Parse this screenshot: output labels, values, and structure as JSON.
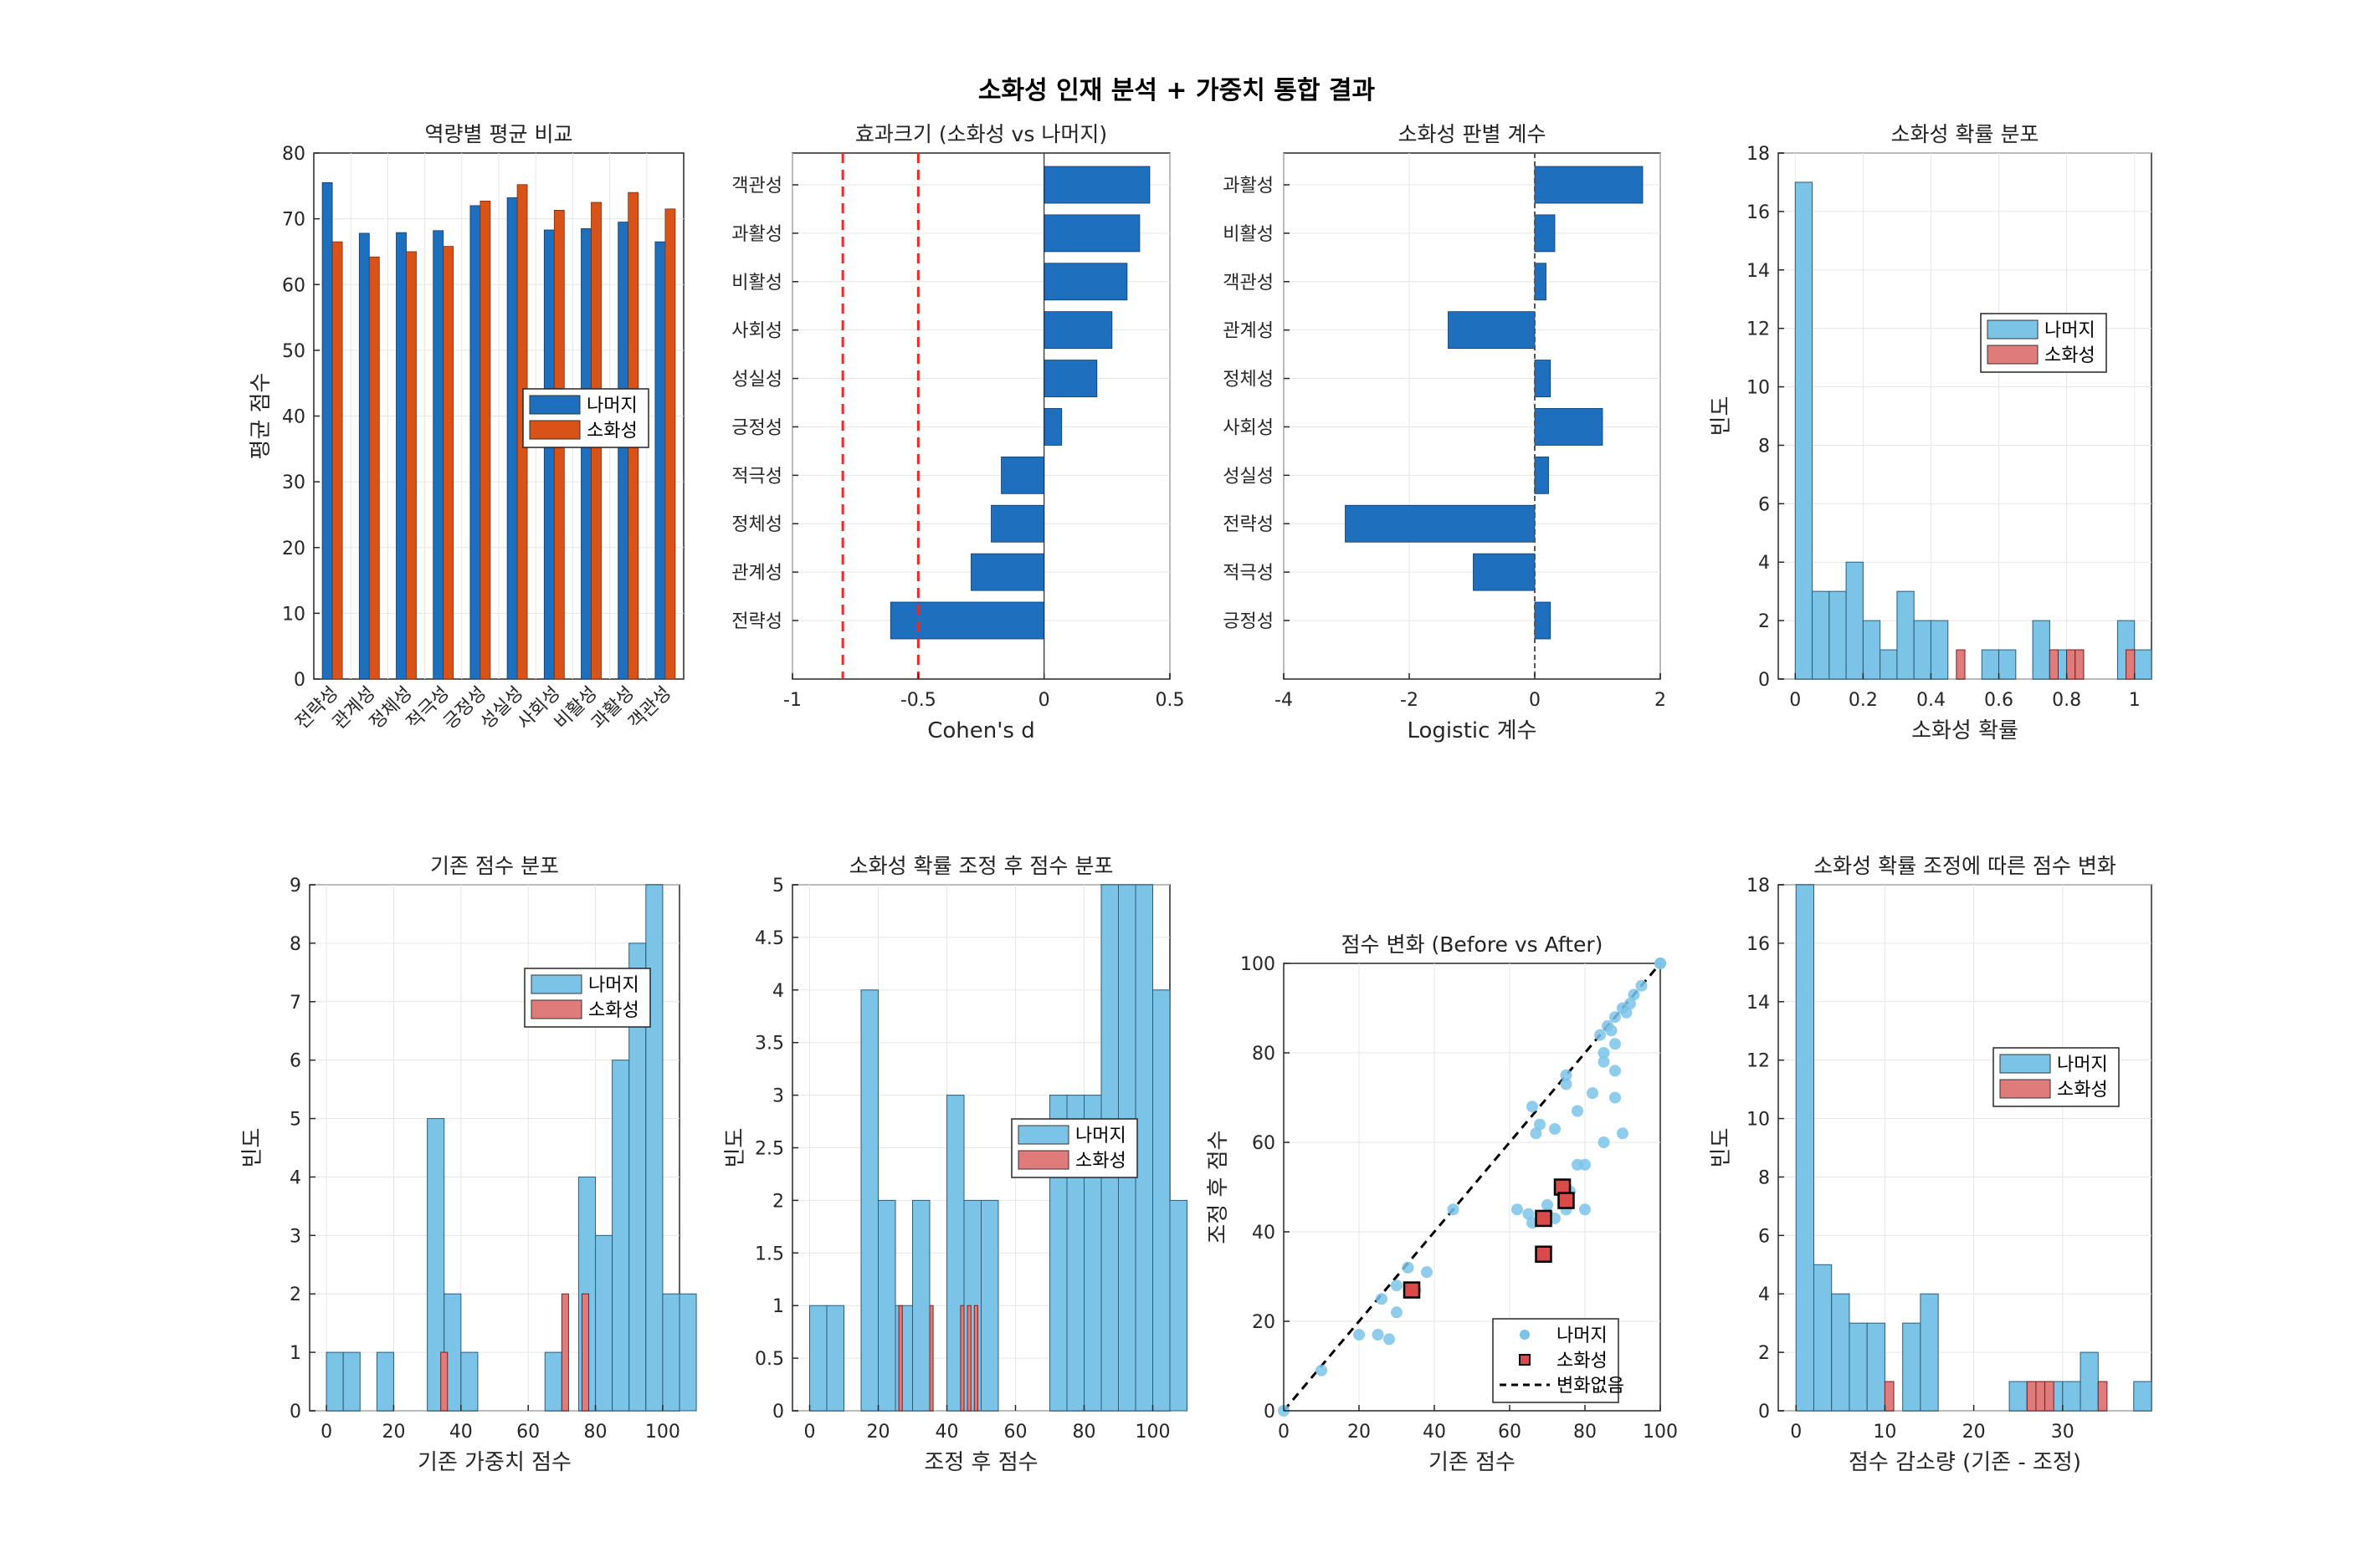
{
  "figure_title": "소화성 인재 분석 + 가중치 통합 결과",
  "colors": {
    "blue_bar": "#1f6fbf",
    "orange_bar": "#d95319",
    "rest_hist": "#7cc3e8",
    "target_hist": "#e07b7b",
    "ref_line": "#e82a2a",
    "scatter_rest": "#7cc3e8",
    "scatter_target": "#d94a4a"
  },
  "chart_data": [
    {
      "type": "bar",
      "title": "역량별 평균 비교",
      "xlabel": "",
      "ylabel": "평균 점수",
      "categories": [
        "전략성",
        "관계성",
        "정체성",
        "적극성",
        "긍정성",
        "성실성",
        "사회성",
        "비활성",
        "과활성",
        "객관성"
      ],
      "series": [
        {
          "name": "나머지",
          "values": [
            75.5,
            67.8,
            67.9,
            68.2,
            72.0,
            73.2,
            68.3,
            68.5,
            69.5,
            66.5
          ]
        },
        {
          "name": "소화성",
          "values": [
            66.5,
            64.2,
            65.0,
            65.8,
            72.7,
            75.2,
            71.3,
            72.5,
            74.0,
            71.5
          ]
        }
      ],
      "ylim": [
        0,
        80
      ],
      "yticks": [
        "0",
        "10",
        "20",
        "30",
        "40",
        "50",
        "60",
        "70",
        "80"
      ],
      "legend": "middle-right"
    },
    {
      "type": "bar",
      "orientation": "horizontal",
      "title": "효과크기 (소화성 vs 나머지)",
      "xlabel": "Cohen's d",
      "ylabel": "",
      "categories": [
        "객관성",
        "과활성",
        "비활성",
        "사회성",
        "성실성",
        "긍정성",
        "적극성",
        "정체성",
        "관계성",
        "전략성"
      ],
      "values": [
        0.42,
        0.38,
        0.33,
        0.27,
        0.21,
        0.07,
        -0.17,
        -0.21,
        -0.29,
        -0.61
      ],
      "xlim": [
        -1,
        0.5
      ],
      "xticks": [
        "-1",
        "-0.5",
        "0",
        "0.5"
      ],
      "reference_lines": [
        -0.8,
        -0.5
      ]
    },
    {
      "type": "bar",
      "orientation": "horizontal",
      "title": "소화성 판별 계수",
      "xlabel": "Logistic 계수",
      "ylabel": "",
      "categories": [
        "과활성",
        "비활성",
        "객관성",
        "관계성",
        "정체성",
        "사회성",
        "성실성",
        "전략성",
        "적극성",
        "긍정성"
      ],
      "values": [
        1.72,
        0.32,
        0.18,
        -1.38,
        0.25,
        1.08,
        0.22,
        -3.02,
        -0.98,
        0.25
      ],
      "xlim": [
        -4,
        2
      ],
      "xticks": [
        "-4",
        "-2",
        "0",
        "2"
      ]
    },
    {
      "type": "histogram",
      "title": "소화성 확률 분포",
      "xlabel": "소화성 확률",
      "ylabel": "빈도",
      "xlim": [
        -0.05,
        1.05
      ],
      "ylim": [
        0,
        18
      ],
      "xticks": [
        "0",
        "0.2",
        "0.4",
        "0.6",
        "0.8",
        "1"
      ],
      "yticks": [
        "0",
        "2",
        "4",
        "6",
        "8",
        "10",
        "12",
        "14",
        "16",
        "18"
      ],
      "legend": "top-right",
      "series": [
        {
          "name": "나머지",
          "bin_start": 0,
          "bin_width": 0.05,
          "counts": [
            17,
            3,
            3,
            4,
            2,
            1,
            3,
            2,
            2,
            0,
            0,
            1,
            1,
            0,
            2,
            1,
            1,
            0,
            0,
            2,
            1
          ]
        },
        {
          "name": "소화성",
          "bin_start": 0.475,
          "bin_width": 0.025,
          "counts": [
            1,
            0,
            0,
            0,
            0,
            0,
            0,
            0,
            0,
            0,
            0,
            1,
            0,
            1,
            1,
            0,
            0,
            0,
            0,
            0,
            1
          ]
        }
      ]
    },
    {
      "type": "histogram",
      "title": "기존 점수 분포",
      "xlabel": "기존 가중치 점수",
      "ylabel": "빈도",
      "xlim": [
        -5,
        105
      ],
      "ylim": [
        0,
        9
      ],
      "xticks": [
        "0",
        "20",
        "40",
        "60",
        "80",
        "100"
      ],
      "yticks": [
        "0",
        "1",
        "2",
        "3",
        "4",
        "5",
        "6",
        "7",
        "8",
        "9"
      ],
      "legend": "top-right",
      "series": [
        {
          "name": "나머지",
          "bin_start": 0,
          "bin_width": 5,
          "counts": [
            1,
            1,
            0,
            1,
            0,
            0,
            5,
            2,
            1,
            0,
            0,
            0,
            0,
            1,
            0,
            4,
            3,
            6,
            8,
            9,
            2,
            2
          ]
        },
        {
          "name": "소화성",
          "bin_start": 34,
          "bin_width": 2,
          "counts": [
            1,
            0,
            0,
            0,
            0,
            0,
            0,
            0,
            0,
            0,
            0,
            0,
            0,
            0,
            0,
            0,
            0,
            0,
            2,
            0,
            0,
            2
          ]
        }
      ]
    },
    {
      "type": "histogram",
      "title": "소화성 확률 조정 후 점수 분포",
      "xlabel": "조정 후 점수",
      "ylabel": "빈도",
      "xlim": [
        -5,
        105
      ],
      "ylim": [
        0,
        5
      ],
      "xticks": [
        "0",
        "20",
        "40",
        "60",
        "80",
        "100"
      ],
      "yticks": [
        "0",
        "0.5",
        "1",
        "1.5",
        "2",
        "2.5",
        "3",
        "3.5",
        "4",
        "4.5",
        "5"
      ],
      "legend": "middle-right",
      "series": [
        {
          "name": "나머지",
          "bin_start": 0,
          "bin_width": 5,
          "counts": [
            1,
            1,
            0,
            4,
            2,
            1,
            2,
            0,
            3,
            2,
            2,
            0,
            0,
            0,
            3,
            3,
            3,
            5,
            5,
            5,
            4,
            2
          ]
        },
        {
          "name": "소화성",
          "bin_start": 25,
          "bin_width": 1,
          "counts": [
            1,
            0,
            0,
            0,
            0,
            0,
            0,
            0,
            0,
            0,
            0,
            0,
            0,
            0,
            0,
            0,
            0,
            1,
            0,
            0,
            0,
            0,
            1,
            0,
            0,
            0,
            0,
            0,
            0,
            0,
            0,
            0,
            0,
            0,
            0,
            0,
            0,
            0,
            0,
            0,
            0,
            0,
            0,
            0,
            0,
            0,
            0,
            0,
            0,
            0,
            0,
            0,
            0,
            0,
            0,
            0,
            0,
            0,
            0,
            0,
            0,
            0,
            0,
            0,
            0,
            0,
            0,
            0,
            0,
            0,
            0,
            0,
            0,
            0,
            0,
            0,
            0,
            0,
            0,
            0,
            0,
            0,
            0,
            0,
            0,
            0,
            0,
            0,
            0,
            0,
            0,
            0,
            0,
            0,
            0,
            0,
            0,
            0,
            0,
            0,
            0
          ]
        }
      ],
      "target_bars": [
        26,
        35,
        44,
        46,
        48
      ]
    },
    {
      "type": "scatter",
      "title": "점수 변화 (Before vs After)",
      "xlabel": "기존 점수",
      "ylabel": "조정 후 점수",
      "xlim": [
        0,
        100
      ],
      "ylim": [
        0,
        100
      ],
      "xticks": [
        "0",
        "20",
        "40",
        "60",
        "80",
        "100"
      ],
      "yticks": [
        "0",
        "20",
        "40",
        "60",
        "80",
        "100"
      ],
      "legend": "bottom-right",
      "series": [
        {
          "name": "나머지",
          "x": [
            0,
            10,
            20,
            25,
            26,
            28,
            30,
            30,
            33,
            35,
            38,
            45,
            65,
            66,
            67,
            68,
            70,
            72,
            75,
            75,
            75,
            76,
            78,
            80,
            82,
            84,
            85,
            85,
            86,
            87,
            88,
            88,
            88,
            90,
            91,
            92,
            93,
            95,
            100,
            100,
            70,
            72,
            75,
            80,
            85,
            90,
            88,
            78,
            66,
            62
          ],
          "y": [
            0,
            9,
            17,
            17,
            25,
            16,
            22,
            28,
            32,
            27,
            31,
            45,
            44,
            68,
            62,
            64,
            46,
            63,
            75,
            73,
            45,
            49,
            67,
            55,
            71,
            84,
            80,
            78,
            86,
            85,
            88,
            82,
            76,
            90,
            89,
            91,
            93,
            95,
            100,
            100,
            44,
            43,
            50,
            45,
            60,
            62,
            70,
            55,
            42,
            45
          ]
        },
        {
          "name": "소화성",
          "x": [
            34,
            69,
            69,
            74,
            75
          ],
          "y": [
            27,
            43,
            35,
            50,
            47
          ]
        },
        {
          "name": "변화없음",
          "x": [
            0,
            100
          ],
          "y": [
            0,
            100
          ]
        }
      ]
    },
    {
      "type": "histogram",
      "title": "소화성 확률 조정에 따른 점수 변화",
      "xlabel": "점수 감소량 (기존 - 조정)",
      "ylabel": "빈도",
      "xlim": [
        -2,
        40
      ],
      "ylim": [
        0,
        18
      ],
      "xticks": [
        "0",
        "10",
        "20",
        "30"
      ],
      "yticks": [
        "0",
        "2",
        "4",
        "6",
        "8",
        "10",
        "12",
        "14",
        "16",
        "18"
      ],
      "legend": "top-right",
      "series": [
        {
          "name": "나머지",
          "bin_start": 0,
          "bin_width": 2,
          "counts": [
            18,
            5,
            4,
            3,
            3,
            0,
            3,
            4,
            0,
            0,
            0,
            0,
            1,
            1,
            1,
            1,
            2,
            0,
            0,
            1
          ]
        },
        {
          "name": "소화성",
          "bin_start": 10,
          "bin_width": 1,
          "counts": []
        }
      ],
      "target_bars": [
        [
          10,
          11,
          1
        ],
        [
          26,
          27,
          1
        ],
        [
          27,
          28,
          1
        ],
        [
          28,
          29,
          1
        ],
        [
          34,
          35,
          1
        ]
      ]
    }
  ]
}
